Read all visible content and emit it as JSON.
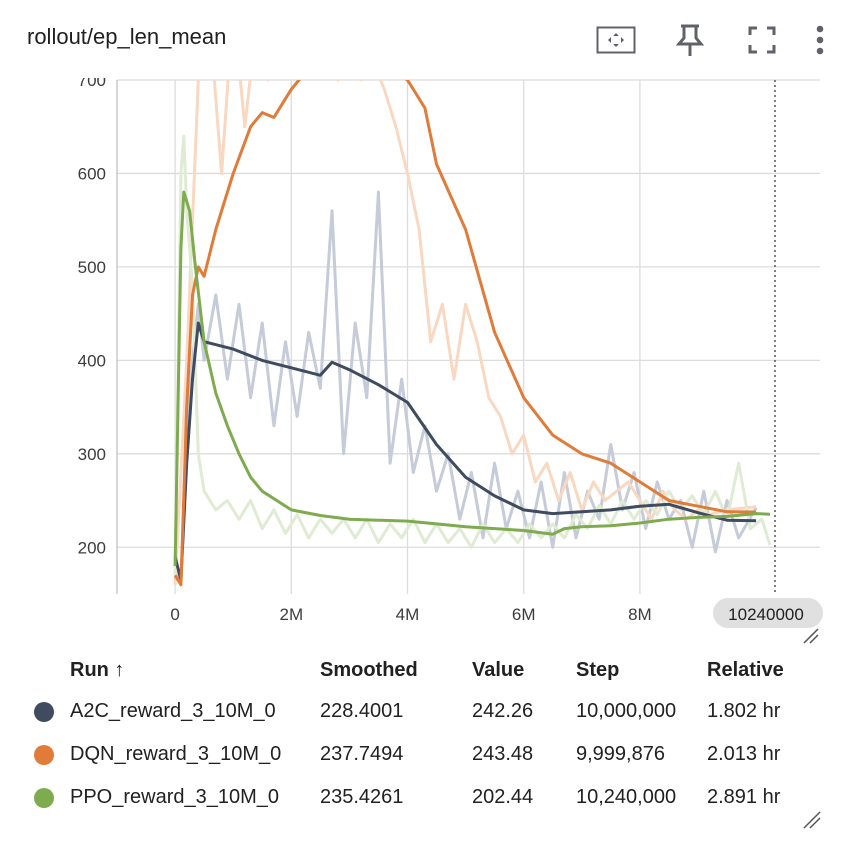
{
  "header": {
    "title": "rollout/ep_len_mean"
  },
  "toolbar": [
    {
      "icon": "fit-to-data-icon"
    },
    {
      "icon": "pin-icon"
    },
    {
      "icon": "fullscreen-icon"
    },
    {
      "icon": "more-vert-icon"
    }
  ],
  "chart_data": {
    "type": "line",
    "title": "rollout/ep_len_mean",
    "xlabel": "",
    "ylabel": "",
    "xlim": [
      -1000000,
      11100000
    ],
    "ylim": [
      150,
      700
    ],
    "x_ticks": [
      "0",
      "2M",
      "4M",
      "6M",
      "8M"
    ],
    "y_ticks": [
      "200",
      "300",
      "400",
      "500",
      "600",
      "700"
    ],
    "hover_step_label": "10240000",
    "grid": true,
    "series": [
      {
        "name": "A2C_reward_3_10M_0",
        "color": "#3f4b5e",
        "raw_color": "#c5cbd8",
        "smoothed": [
          [
            0,
            190
          ],
          [
            100000,
            165
          ],
          [
            200000,
            290
          ],
          [
            300000,
            380
          ],
          [
            400000,
            440
          ],
          [
            500000,
            420
          ],
          [
            1000000,
            412
          ],
          [
            1500000,
            400
          ],
          [
            2000000,
            392
          ],
          [
            2500000,
            384
          ],
          [
            2700000,
            398
          ],
          [
            3000000,
            390
          ],
          [
            3500000,
            374
          ],
          [
            4000000,
            355
          ],
          [
            4500000,
            310
          ],
          [
            5000000,
            275
          ],
          [
            5500000,
            255
          ],
          [
            6000000,
            240
          ],
          [
            6500000,
            236
          ],
          [
            7000000,
            238
          ],
          [
            7500000,
            240
          ],
          [
            8000000,
            244
          ],
          [
            8500000,
            246
          ],
          [
            9000000,
            237
          ],
          [
            9500000,
            229
          ],
          [
            10000000,
            228.4
          ]
        ],
        "raw": [
          [
            0,
            180
          ],
          [
            100000,
            160
          ],
          [
            200000,
            320
          ],
          [
            300000,
            400
          ],
          [
            400000,
            460
          ],
          [
            500000,
            400
          ],
          [
            700000,
            470
          ],
          [
            900000,
            380
          ],
          [
            1100000,
            460
          ],
          [
            1300000,
            360
          ],
          [
            1500000,
            440
          ],
          [
            1700000,
            330
          ],
          [
            1900000,
            420
          ],
          [
            2100000,
            340
          ],
          [
            2300000,
            430
          ],
          [
            2500000,
            370
          ],
          [
            2700000,
            560
          ],
          [
            2900000,
            300
          ],
          [
            3100000,
            440
          ],
          [
            3300000,
            360
          ],
          [
            3500000,
            580
          ],
          [
            3700000,
            290
          ],
          [
            3900000,
            380
          ],
          [
            4100000,
            280
          ],
          [
            4300000,
            330
          ],
          [
            4500000,
            260
          ],
          [
            4700000,
            300
          ],
          [
            4900000,
            230
          ],
          [
            5100000,
            280
          ],
          [
            5300000,
            210
          ],
          [
            5500000,
            290
          ],
          [
            5700000,
            220
          ],
          [
            5900000,
            260
          ],
          [
            6100000,
            210
          ],
          [
            6300000,
            270
          ],
          [
            6500000,
            200
          ],
          [
            6700000,
            280
          ],
          [
            6900000,
            210
          ],
          [
            7100000,
            260
          ],
          [
            7300000,
            230
          ],
          [
            7500000,
            310
          ],
          [
            7700000,
            240
          ],
          [
            7900000,
            280
          ],
          [
            8100000,
            220
          ],
          [
            8300000,
            270
          ],
          [
            8500000,
            230
          ],
          [
            8700000,
            250
          ],
          [
            8900000,
            200
          ],
          [
            9100000,
            260
          ],
          [
            9300000,
            195
          ],
          [
            9500000,
            250
          ],
          [
            9700000,
            210
          ],
          [
            10000000,
            242.26
          ]
        ]
      },
      {
        "name": "DQN_reward_3_10M_0",
        "color": "#e07b39",
        "raw_color": "#f9d8c2",
        "smoothed": [
          [
            0,
            170
          ],
          [
            100000,
            160
          ],
          [
            200000,
            350
          ],
          [
            300000,
            470
          ],
          [
            400000,
            500
          ],
          [
            500000,
            490
          ],
          [
            700000,
            540
          ],
          [
            1000000,
            600
          ],
          [
            1300000,
            650
          ],
          [
            1500000,
            665
          ],
          [
            1700000,
            660
          ],
          [
            2000000,
            690
          ],
          [
            2200000,
            705
          ],
          [
            2400000,
            708
          ],
          [
            2600000,
            712
          ],
          [
            3000000,
            715
          ],
          [
            3500000,
            715
          ],
          [
            3800000,
            708
          ],
          [
            4000000,
            700
          ],
          [
            4300000,
            670
          ],
          [
            4500000,
            610
          ],
          [
            5000000,
            540
          ],
          [
            5500000,
            430
          ],
          [
            6000000,
            360
          ],
          [
            6500000,
            320
          ],
          [
            7000000,
            300
          ],
          [
            7500000,
            290
          ],
          [
            8000000,
            270
          ],
          [
            8500000,
            250
          ],
          [
            9000000,
            244
          ],
          [
            9500000,
            238
          ],
          [
            9999876,
            237.75
          ]
        ],
        "raw": [
          [
            0,
            160
          ],
          [
            200000,
            400
          ],
          [
            400000,
            700
          ],
          [
            600000,
            760
          ],
          [
            800000,
            600
          ],
          [
            1000000,
            780
          ],
          [
            1200000,
            650
          ],
          [
            1400000,
            760
          ],
          [
            1600000,
            700
          ],
          [
            1800000,
            760
          ],
          [
            2000000,
            720
          ],
          [
            2200000,
            760
          ],
          [
            2400000,
            710
          ],
          [
            2600000,
            760
          ],
          [
            2800000,
            700
          ],
          [
            3000000,
            760
          ],
          [
            3200000,
            700
          ],
          [
            3400000,
            720
          ],
          [
            3600000,
            690
          ],
          [
            3800000,
            650
          ],
          [
            4000000,
            600
          ],
          [
            4200000,
            540
          ],
          [
            4400000,
            420
          ],
          [
            4600000,
            460
          ],
          [
            4800000,
            380
          ],
          [
            5000000,
            460
          ],
          [
            5200000,
            420
          ],
          [
            5400000,
            360
          ],
          [
            5600000,
            340
          ],
          [
            5800000,
            300
          ],
          [
            6000000,
            320
          ],
          [
            6200000,
            270
          ],
          [
            6400000,
            290
          ],
          [
            6600000,
            250
          ],
          [
            6800000,
            280
          ],
          [
            7000000,
            240
          ],
          [
            7200000,
            270
          ],
          [
            7400000,
            250
          ],
          [
            7600000,
            260
          ],
          [
            7800000,
            270
          ],
          [
            8000000,
            250
          ],
          [
            8200000,
            230
          ],
          [
            8400000,
            260
          ],
          [
            8600000,
            240
          ],
          [
            8800000,
            230
          ],
          [
            9000000,
            240
          ],
          [
            9200000,
            235
          ],
          [
            9500000,
            240
          ],
          [
            9999876,
            243.48
          ]
        ]
      },
      {
        "name": "PPO_reward_3_10M_0",
        "color": "#7fab4f",
        "raw_color": "#dfebd3",
        "smoothed": [
          [
            0,
            180
          ],
          [
            100000,
            520
          ],
          [
            150000,
            580
          ],
          [
            250000,
            560
          ],
          [
            350000,
            500
          ],
          [
            500000,
            420
          ],
          [
            700000,
            365
          ],
          [
            900000,
            330
          ],
          [
            1100000,
            300
          ],
          [
            1300000,
            275
          ],
          [
            1500000,
            260
          ],
          [
            1800000,
            248
          ],
          [
            2000000,
            240
          ],
          [
            2500000,
            234
          ],
          [
            3000000,
            230
          ],
          [
            3500000,
            229
          ],
          [
            4000000,
            228
          ],
          [
            4500000,
            225
          ],
          [
            5000000,
            222
          ],
          [
            5500000,
            220
          ],
          [
            6000000,
            218
          ],
          [
            6500000,
            214
          ],
          [
            6700000,
            220
          ],
          [
            7000000,
            222
          ],
          [
            7500000,
            223
          ],
          [
            8000000,
            226
          ],
          [
            8500000,
            230
          ],
          [
            9000000,
            232
          ],
          [
            9500000,
            233
          ],
          [
            10000000,
            236
          ],
          [
            10240000,
            235.43
          ]
        ],
        "raw": [
          [
            0,
            170
          ],
          [
            100000,
            600
          ],
          [
            150000,
            640
          ],
          [
            200000,
            560
          ],
          [
            300000,
            480
          ],
          [
            400000,
            300
          ],
          [
            500000,
            260
          ],
          [
            700000,
            240
          ],
          [
            900000,
            250
          ],
          [
            1100000,
            230
          ],
          [
            1300000,
            250
          ],
          [
            1500000,
            220
          ],
          [
            1700000,
            240
          ],
          [
            1900000,
            215
          ],
          [
            2100000,
            235
          ],
          [
            2300000,
            210
          ],
          [
            2500000,
            230
          ],
          [
            2700000,
            215
          ],
          [
            2900000,
            230
          ],
          [
            3100000,
            210
          ],
          [
            3300000,
            230
          ],
          [
            3500000,
            205
          ],
          [
            3700000,
            225
          ],
          [
            3900000,
            210
          ],
          [
            4100000,
            230
          ],
          [
            4300000,
            205
          ],
          [
            4500000,
            225
          ],
          [
            4700000,
            205
          ],
          [
            4900000,
            220
          ],
          [
            5100000,
            200
          ],
          [
            5300000,
            225
          ],
          [
            5500000,
            205
          ],
          [
            5700000,
            220
          ],
          [
            5900000,
            205
          ],
          [
            6100000,
            225
          ],
          [
            6300000,
            210
          ],
          [
            6500000,
            225
          ],
          [
            6700000,
            210
          ],
          [
            6900000,
            235
          ],
          [
            7100000,
            220
          ],
          [
            7300000,
            245
          ],
          [
            7500000,
            225
          ],
          [
            7700000,
            250
          ],
          [
            7900000,
            230
          ],
          [
            8100000,
            250
          ],
          [
            8300000,
            235
          ],
          [
            8500000,
            260
          ],
          [
            8700000,
            240
          ],
          [
            8900000,
            255
          ],
          [
            9100000,
            235
          ],
          [
            9300000,
            260
          ],
          [
            9500000,
            230
          ],
          [
            9700000,
            290
          ],
          [
            9900000,
            220
          ],
          [
            10100000,
            230
          ],
          [
            10240000,
            202.44
          ]
        ]
      }
    ]
  },
  "table": {
    "headers": {
      "run": "Run ↑",
      "smoothed": "Smoothed",
      "value": "Value",
      "step": "Step",
      "relative": "Relative"
    },
    "rows": [
      {
        "run": "A2C_reward_3_10M_0",
        "color": "#3f4b5e",
        "smoothed": "228.4001",
        "value": "242.26",
        "step": "10,000,000",
        "relative": "1.802 hr"
      },
      {
        "run": "DQN_reward_3_10M_0",
        "color": "#e07b39",
        "smoothed": "237.7494",
        "value": "243.48",
        "step": "9,999,876",
        "relative": "2.013 hr"
      },
      {
        "run": "PPO_reward_3_10M_0",
        "color": "#7fab4f",
        "smoothed": "235.4261",
        "value": "202.44",
        "step": "10,240,000",
        "relative": "2.891 hr"
      }
    ]
  }
}
